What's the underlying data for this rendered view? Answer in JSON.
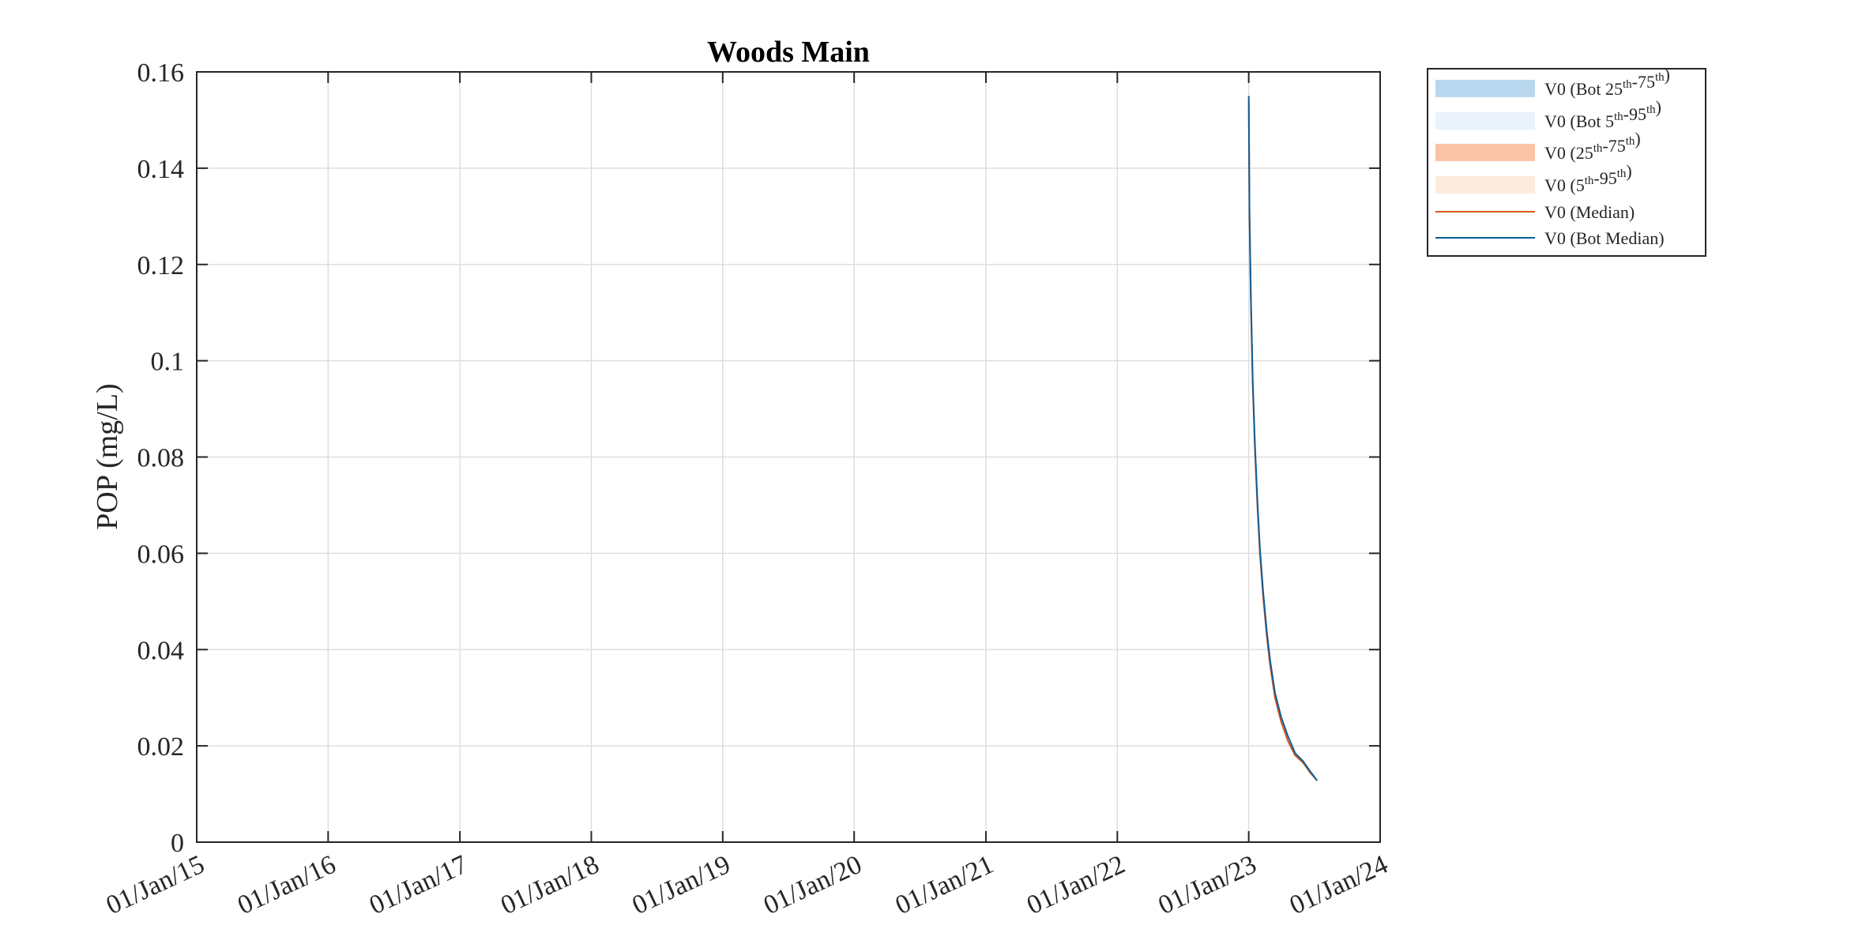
{
  "chart_data": {
    "type": "line",
    "title": "Woods Main",
    "ylabel": "POP (mg/L)",
    "xlabel": "",
    "ylim": [
      0,
      0.16
    ],
    "yticks": [
      0,
      0.02,
      0.04,
      0.06,
      0.08,
      0.1,
      0.12,
      0.14,
      0.16
    ],
    "ytick_labels": [
      "0",
      "0.02",
      "0.04",
      "0.06",
      "0.08",
      "0.1",
      "0.12",
      "0.14",
      "0.16"
    ],
    "xlim": [
      "2015-01-01",
      "2024-01-01"
    ],
    "xticks": [
      "2015-01-01",
      "2016-01-01",
      "2017-01-01",
      "2018-01-01",
      "2019-01-01",
      "2020-01-01",
      "2021-01-01",
      "2022-01-01",
      "2023-01-01",
      "2024-01-01"
    ],
    "xtick_labels": [
      "01/Jan/15",
      "01/Jan/16",
      "01/Jan/17",
      "01/Jan/18",
      "01/Jan/19",
      "01/Jan/20",
      "01/Jan/21",
      "01/Jan/22",
      "01/Jan/23",
      "01/Jan/24"
    ],
    "grid": true,
    "legend_position": "outside-top-right",
    "legend": [
      {
        "base": "V0 (Bot 25",
        "s1": "th",
        "mid": "-75",
        "s2": "th",
        "end": ")",
        "kind": "band",
        "color": "#b9d7ee"
      },
      {
        "base": "V0 (Bot 5",
        "s1": "th",
        "mid": "-95",
        "s2": "th",
        "end": ")",
        "kind": "band",
        "color": "#eaf3fb"
      },
      {
        "base": "V0 (25",
        "s1": "th",
        "mid": "-75",
        "s2": "th",
        "end": ")",
        "kind": "band",
        "color": "#fbc3a6"
      },
      {
        "base": "V0 (5",
        "s1": "th",
        "mid": "-95",
        "s2": "th",
        "end": ")",
        "kind": "band",
        "color": "#fcebdc"
      },
      {
        "base": "V0 (Median)",
        "s1": "",
        "mid": "",
        "s2": "",
        "end": "",
        "kind": "line",
        "color": "#d95319"
      },
      {
        "base": "V0 (Bot Median)",
        "s1": "",
        "mid": "",
        "s2": "",
        "end": "",
        "kind": "line",
        "color": "#0e5e96"
      }
    ],
    "series": [
      {
        "name": "V0 (Median)",
        "color": "#d95319",
        "x": [
          "2023-01-01",
          "2023-01-03",
          "2023-01-07",
          "2023-01-12",
          "2023-01-18",
          "2023-01-25",
          "2023-02-01",
          "2023-02-10",
          "2023-02-20",
          "2023-03-01",
          "2023-03-15",
          "2023-04-01",
          "2023-04-20",
          "2023-05-10",
          "2023-06-01",
          "2023-06-20",
          "2023-07-10"
        ],
        "y": [
          0.154,
          0.13,
          0.112,
          0.095,
          0.082,
          0.07,
          0.06,
          0.051,
          0.043,
          0.037,
          0.03,
          0.025,
          0.021,
          0.018,
          0.0165,
          0.0145,
          0.0128
        ]
      },
      {
        "name": "V0 (Bot Median)",
        "color": "#0e5e96",
        "x": [
          "2023-01-01",
          "2023-01-03",
          "2023-01-07",
          "2023-01-12",
          "2023-01-18",
          "2023-01-25",
          "2023-02-01",
          "2023-02-10",
          "2023-02-20",
          "2023-03-01",
          "2023-03-15",
          "2023-04-01",
          "2023-04-20",
          "2023-05-10",
          "2023-06-01",
          "2023-06-20",
          "2023-07-10"
        ],
        "y": [
          0.155,
          0.131,
          0.113,
          0.096,
          0.083,
          0.071,
          0.061,
          0.052,
          0.044,
          0.038,
          0.031,
          0.026,
          0.022,
          0.0185,
          0.0168,
          0.0148,
          0.0128
        ]
      }
    ]
  }
}
